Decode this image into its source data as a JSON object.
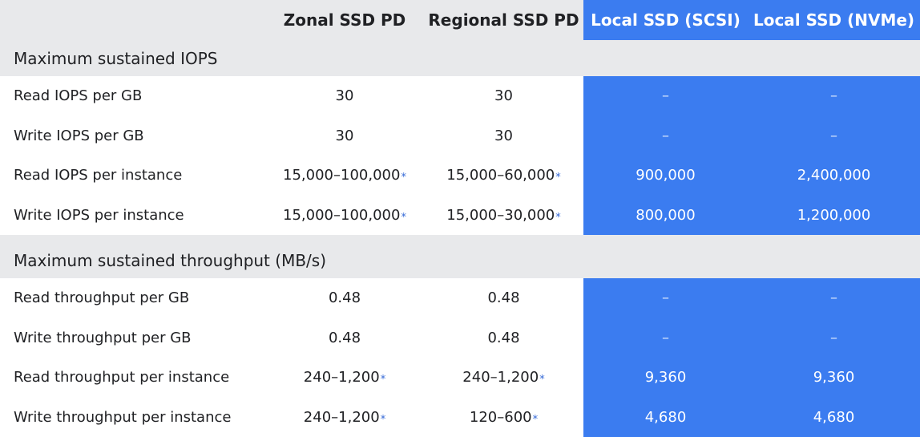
{
  "headers": [
    "",
    "Zonal SSD PD",
    "Regional SSD PD",
    "Local SSD (SCSI)",
    "Local SSD (NVMe)"
  ],
  "sections": [
    {
      "title": "Maximum sustained IOPS",
      "rows": [
        {
          "label": "Read IOPS per GB",
          "zonal": "30",
          "zonal_ast": "",
          "regional": "30",
          "regional_ast": "",
          "scsi": "–",
          "nvme": "–"
        },
        {
          "label": "Write IOPS per GB",
          "zonal": "30",
          "zonal_ast": "",
          "regional": "30",
          "regional_ast": "",
          "scsi": "–",
          "nvme": "–"
        },
        {
          "label": "Read IOPS per instance",
          "zonal": "15,000–100,000",
          "zonal_ast": "*",
          "regional": "15,000–60,000",
          "regional_ast": "*",
          "scsi": "900,000",
          "nvme": "2,400,000"
        },
        {
          "label": "Write IOPS per instance",
          "zonal": "15,000–100,000",
          "zonal_ast": "*",
          "regional": "15,000–30,000",
          "regional_ast": "*",
          "scsi": "800,000",
          "nvme": "1,200,000"
        }
      ]
    },
    {
      "title": "Maximum sustained throughput (MB/s)",
      "rows": [
        {
          "label": "Read throughput per GB",
          "zonal": "0.48",
          "zonal_ast": "",
          "regional": "0.48",
          "regional_ast": "",
          "scsi": "–",
          "nvme": "–"
        },
        {
          "label": "Write throughput per GB",
          "zonal": "0.48",
          "zonal_ast": "",
          "regional": "0.48",
          "regional_ast": "",
          "scsi": "–",
          "nvme": "–"
        },
        {
          "label": "Read throughput per instance",
          "zonal": "240–1,200",
          "zonal_ast": "*",
          "regional": "240–1,200",
          "regional_ast": "*",
          "scsi": "9,360",
          "nvme": "9,360"
        },
        {
          "label": "Write throughput per instance",
          "zonal": "240–1,200",
          "zonal_ast": "*",
          "regional": "120–600",
          "regional_ast": "*",
          "scsi": "4,680",
          "nvme": "4,680"
        }
      ]
    }
  ],
  "colors": {
    "local_bg": "#3b7cf0",
    "section_bg": "#e8e9eb",
    "asterisk": "#3367d6"
  }
}
